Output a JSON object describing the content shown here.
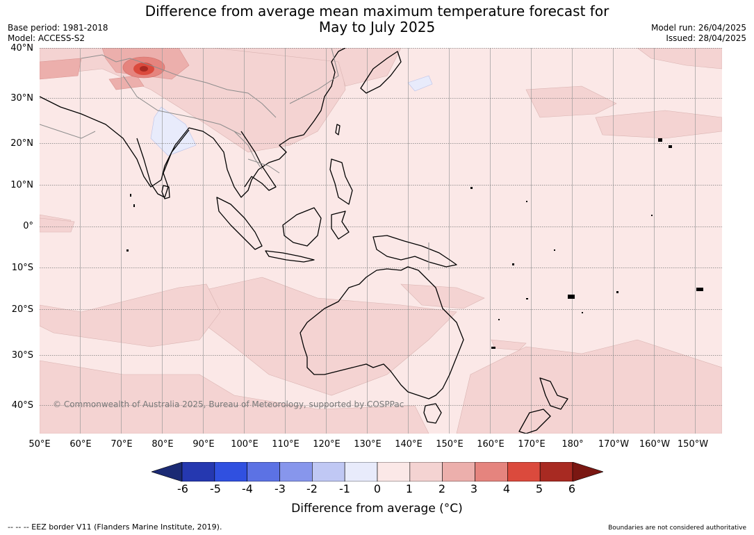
{
  "title": {
    "line1": "Difference from average mean maximum temperature forecast for",
    "line2": "May to July 2025"
  },
  "meta_left": {
    "base_period": "Base period: 1981-2018",
    "model": "Model: ACCESS-S2"
  },
  "meta_right": {
    "model_run": "Model run: 26/04/2025",
    "issued": "Issued: 28/04/2025"
  },
  "map": {
    "latitude_labels": [
      "40°N",
      "30°N",
      "20°N",
      "10°N",
      "0°",
      "10°S",
      "20°S",
      "30°S",
      "40°S"
    ],
    "longitude_labels": [
      "50°E",
      "60°E",
      "70°E",
      "80°E",
      "90°E",
      "100°E",
      "110°E",
      "120°E",
      "130°E",
      "140°E",
      "150°E",
      "160°E",
      "170°E",
      "180°",
      "170°W",
      "160°W",
      "150°W"
    ],
    "copyright": "© Commonwealth of Australia 2025, Bureau of Meteorology, supported by COSPPac",
    "background_class_color": "#fbe8e7"
  },
  "colorbar": {
    "title": "Difference from average (°C)",
    "tick_labels": [
      "-6",
      "-5",
      "-4",
      "-3",
      "-2",
      "-1",
      "0",
      "1",
      "2",
      "3",
      "4",
      "5",
      "6"
    ],
    "colors": [
      "#1b2a74",
      "#2538b0",
      "#3050e0",
      "#5c72e4",
      "#8796ec",
      "#c0c8f4",
      "#e8ebfb",
      "#fbe8e7",
      "#f4d3d2",
      "#ecafac",
      "#e5847e",
      "#db4a3d",
      "#a82a22",
      "#7a1712"
    ]
  },
  "footer": {
    "left": "--  --  -- EEZ border V11 (Flanders Marine Institute, 2019).",
    "right": "Boundaries are not considered authoritative"
  }
}
